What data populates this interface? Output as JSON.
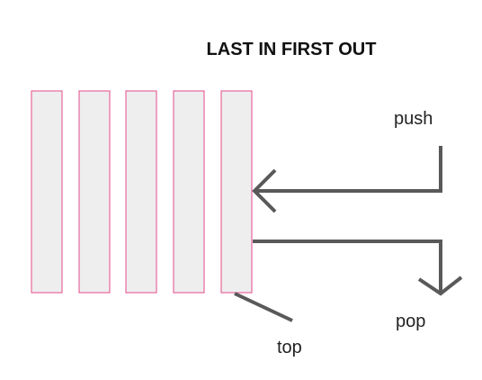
{
  "title": "LAST IN FIRST OUT",
  "labels": {
    "push": "push",
    "pop": "pop",
    "top": "top"
  },
  "stack": {
    "slot_count": 5,
    "slot_fill": "#eeeeee",
    "slot_border": "#e8679a"
  },
  "colors": {
    "arrow": "#595959",
    "text": "#222222"
  }
}
